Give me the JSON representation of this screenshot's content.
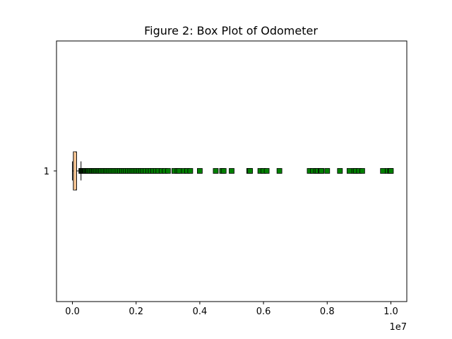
{
  "chart_data": {
    "type": "box",
    "title": "Figure 2: Box Plot of Odometer",
    "orientation": "horizontal",
    "category_labels": [
      "1"
    ],
    "x_scale_label": "1e7",
    "xlim": [
      -500000,
      10500000
    ],
    "x_ticks": [
      0,
      2000000,
      4000000,
      6000000,
      8000000,
      10000000
    ],
    "x_tick_labels": [
      "0.0",
      "0.2",
      "0.4",
      "0.6",
      "0.8",
      "1.0"
    ],
    "box": {
      "whisker_low": 0,
      "q1": 30000,
      "median": 60000,
      "q3": 130000,
      "whisker_high": 270000
    },
    "outliers": [
      280000,
      300000,
      320000,
      340000,
      360000,
      380000,
      400000,
      420000,
      450000,
      480000,
      500000,
      530000,
      560000,
      600000,
      630000,
      670000,
      700000,
      740000,
      780000,
      820000,
      860000,
      900000,
      950000,
      1000000,
      1050000,
      1100000,
      1150000,
      1200000,
      1260000,
      1320000,
      1380000,
      1440000,
      1500000,
      1560000,
      1620000,
      1680000,
      1740000,
      1800000,
      1860000,
      1920000,
      1980000,
      2040000,
      2100000,
      2160000,
      2220000,
      2300000,
      2380000,
      2460000,
      2540000,
      2620000,
      2700000,
      2800000,
      2900000,
      3000000,
      3200000,
      3300000,
      3350000,
      3500000,
      3600000,
      3700000,
      4000000,
      4500000,
      4700000,
      4750000,
      5000000,
      5550000,
      5580000,
      5900000,
      6000000,
      6100000,
      6500000,
      7450000,
      7550000,
      7650000,
      7700000,
      7800000,
      7820000,
      8000000,
      8400000,
      8700000,
      8850000,
      8900000,
      9000000,
      9100000,
      9750000,
      9900000,
      9980000,
      10000000
    ],
    "colors": {
      "box_fill": "#ffcc99",
      "outlier_fill": "#008000",
      "edge": "#000000"
    }
  }
}
